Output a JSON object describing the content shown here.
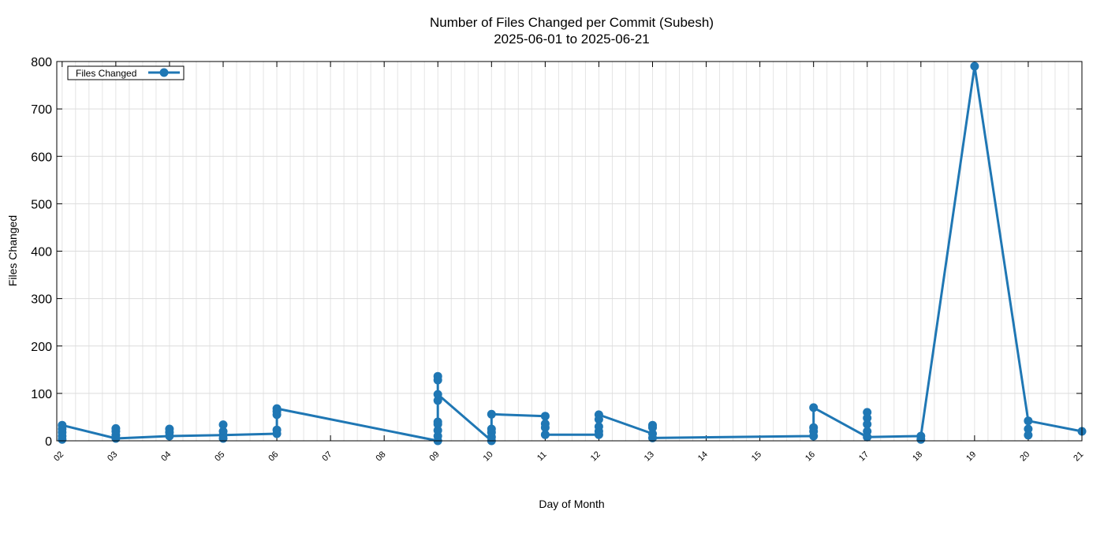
{
  "chart_data": {
    "type": "line",
    "title": "Number of Files Changed per Commit (Subesh)",
    "subtitle": "2025-06-01 to 2025-06-21",
    "xlabel": "Day of Month",
    "ylabel": "Files Changed",
    "xlim": [
      1.9,
      21
    ],
    "ylim": [
      0,
      800
    ],
    "yticks": [
      0,
      100,
      200,
      300,
      400,
      500,
      600,
      700,
      800
    ],
    "xticks": [
      "02",
      "03",
      "04",
      "05",
      "06",
      "07",
      "08",
      "09",
      "10",
      "11",
      "12",
      "13",
      "14",
      "15",
      "16",
      "17",
      "18",
      "19",
      "20",
      "21"
    ],
    "grid": true,
    "legend": {
      "position": "top-left"
    },
    "series": [
      {
        "name": "Files Changed",
        "color": "#1f77b4",
        "points": [
          {
            "x": 2,
            "y": 33
          },
          {
            "x": 2,
            "y": 25
          },
          {
            "x": 2,
            "y": 18
          },
          {
            "x": 2,
            "y": 10
          },
          {
            "x": 2,
            "y": 3
          },
          {
            "x": 3,
            "y": 26
          },
          {
            "x": 3,
            "y": 20
          },
          {
            "x": 3,
            "y": 12
          },
          {
            "x": 3,
            "y": 5
          },
          {
            "x": 4,
            "y": 25
          },
          {
            "x": 4,
            "y": 18
          },
          {
            "x": 4,
            "y": 10
          },
          {
            "x": 5,
            "y": 34
          },
          {
            "x": 5,
            "y": 20
          },
          {
            "x": 5,
            "y": 12
          },
          {
            "x": 5,
            "y": 5
          },
          {
            "x": 6,
            "y": 68
          },
          {
            "x": 6,
            "y": 62
          },
          {
            "x": 6,
            "y": 55
          },
          {
            "x": 6,
            "y": 23
          },
          {
            "x": 6,
            "y": 15
          },
          {
            "x": 9,
            "y": 0
          },
          {
            "x": 9,
            "y": 10
          },
          {
            "x": 9,
            "y": 22
          },
          {
            "x": 9,
            "y": 35
          },
          {
            "x": 9,
            "y": 40
          },
          {
            "x": 9,
            "y": 85
          },
          {
            "x": 9,
            "y": 98
          },
          {
            "x": 9,
            "y": 128
          },
          {
            "x": 9,
            "y": 136
          },
          {
            "x": 10,
            "y": 0
          },
          {
            "x": 10,
            "y": 8
          },
          {
            "x": 10,
            "y": 18
          },
          {
            "x": 10,
            "y": 25
          },
          {
            "x": 10,
            "y": 56
          },
          {
            "x": 11,
            "y": 52
          },
          {
            "x": 11,
            "y": 36
          },
          {
            "x": 11,
            "y": 28
          },
          {
            "x": 11,
            "y": 13
          },
          {
            "x": 12,
            "y": 55
          },
          {
            "x": 12,
            "y": 45
          },
          {
            "x": 12,
            "y": 30
          },
          {
            "x": 12,
            "y": 20
          },
          {
            "x": 12,
            "y": 13
          },
          {
            "x": 13,
            "y": 33
          },
          {
            "x": 13,
            "y": 28
          },
          {
            "x": 13,
            "y": 15
          },
          {
            "x": 13,
            "y": 6
          },
          {
            "x": 16,
            "y": 10
          },
          {
            "x": 16,
            "y": 20
          },
          {
            "x": 16,
            "y": 28
          },
          {
            "x": 16,
            "y": 70
          },
          {
            "x": 17,
            "y": 60
          },
          {
            "x": 17,
            "y": 48
          },
          {
            "x": 17,
            "y": 35
          },
          {
            "x": 17,
            "y": 20
          },
          {
            "x": 17,
            "y": 8
          },
          {
            "x": 18,
            "y": 10
          },
          {
            "x": 18,
            "y": 3
          },
          {
            "x": 19,
            "y": 790
          },
          {
            "x": 20,
            "y": 42
          },
          {
            "x": 20,
            "y": 25
          },
          {
            "x": 20,
            "y": 12
          },
          {
            "x": 21,
            "y": 20
          }
        ],
        "line": [
          {
            "x": 2,
            "y": 33
          },
          {
            "x": 3,
            "y": 5
          },
          {
            "x": 4,
            "y": 10
          },
          {
            "x": 5,
            "y": 12
          },
          {
            "x": 6,
            "y": 15
          },
          {
            "x": 6,
            "y": 68
          },
          {
            "x": 9,
            "y": 0
          },
          {
            "x": 9,
            "y": 136
          },
          {
            "x": 9,
            "y": 98
          },
          {
            "x": 10,
            "y": 0
          },
          {
            "x": 10,
            "y": 56
          },
          {
            "x": 11,
            "y": 52
          },
          {
            "x": 11,
            "y": 13
          },
          {
            "x": 12,
            "y": 13
          },
          {
            "x": 12,
            "y": 55
          },
          {
            "x": 13,
            "y": 15
          },
          {
            "x": 13,
            "y": 6
          },
          {
            "x": 16,
            "y": 10
          },
          {
            "x": 16,
            "y": 70
          },
          {
            "x": 17,
            "y": 8
          },
          {
            "x": 18,
            "y": 10
          },
          {
            "x": 19,
            "y": 790
          },
          {
            "x": 20,
            "y": 42
          },
          {
            "x": 21,
            "y": 20
          }
        ]
      }
    ]
  }
}
